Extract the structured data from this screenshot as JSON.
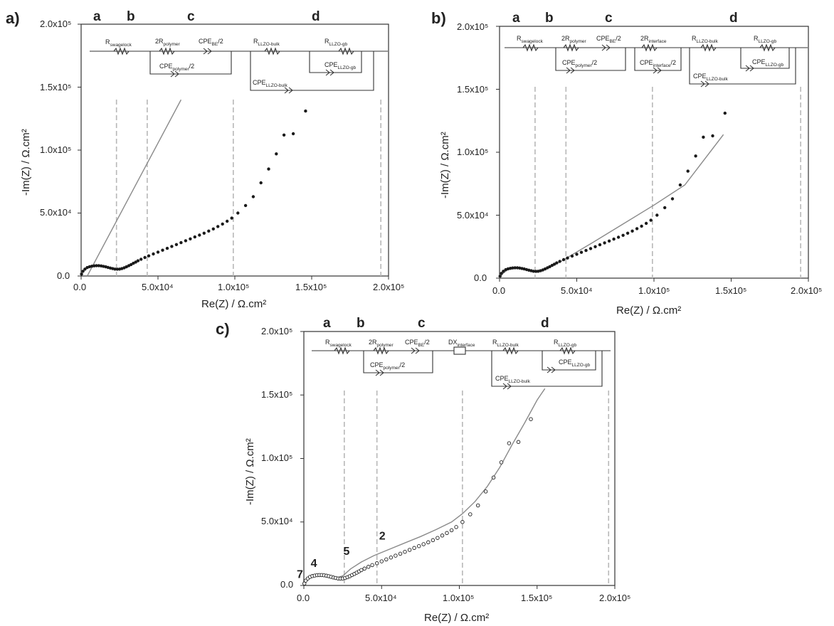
{
  "chart_data": [
    {
      "type": "scatter",
      "panel_label": "a)",
      "xlabel": "Re(Z) / Ω.cm²",
      "ylabel": "-Im(Z) / Ω.cm²",
      "xlim": [
        0,
        200000
      ],
      "ylim": [
        0,
        200000
      ],
      "x_ticks": [
        "0.0",
        "5.0x10⁴",
        "1.0x10⁵",
        "1.5x10⁵",
        "2.0x10⁵"
      ],
      "y_ticks": [
        "0.0",
        "5.0x10⁴",
        "1.0x10⁵",
        "1.5x10⁵",
        "2.0x10⁵"
      ],
      "region_labels": [
        "a",
        "b",
        "c",
        "d"
      ],
      "region_boundaries": [
        23000,
        43000,
        99000,
        195000
      ],
      "circuit_elements": [
        "R_swagelock",
        "2R_polymer",
        "CPE_BE/2",
        "CPE_polymer/2",
        "R_LLZO-bulk",
        "R_LLZO-gb",
        "CPE_LLZO-gb",
        "CPE_LLZO-bulk"
      ],
      "marker": "filled",
      "fit": {
        "type": "line",
        "x": [
          4000,
          65000
        ],
        "y": [
          0,
          140000
        ]
      },
      "points": {
        "x": [
          300,
          1200,
          2500,
          4000,
          5500,
          7000,
          8500,
          10000,
          11500,
          13000,
          14500,
          16000,
          17500,
          19000,
          20500,
          22000,
          23500,
          25000,
          26500,
          28000,
          29500,
          31000,
          32500,
          34000,
          35500,
          37000,
          39000,
          41500,
          44000,
          47000,
          50000,
          53000,
          56000,
          59000,
          62000,
          65000,
          68000,
          71000,
          74000,
          77000,
          80000,
          83000,
          86000,
          89000,
          92000,
          95000,
          98000,
          102000,
          107000,
          112000,
          117000,
          122000,
          127000,
          132000,
          138000,
          146000
        ],
        "y": [
          1500,
          3800,
          5500,
          6700,
          7400,
          7800,
          8100,
          8200,
          8200,
          8000,
          7700,
          7300,
          6800,
          6300,
          5900,
          5500,
          5400,
          5500,
          5900,
          6500,
          7300,
          8200,
          9100,
          10100,
          11100,
          12100,
          13300,
          14700,
          16000,
          17500,
          19000,
          20500,
          22000,
          23500,
          25000,
          26500,
          28000,
          29500,
          31000,
          32500,
          34000,
          35700,
          37400,
          39300,
          41300,
          43500,
          46000,
          50000,
          56000,
          63000,
          74000,
          85000,
          97000,
          112000,
          113000,
          131000
        ]
      }
    },
    {
      "type": "scatter",
      "panel_label": "b)",
      "xlabel": "Re(Z) / Ω.cm²",
      "ylabel": "-Im(Z) / Ω.cm²",
      "xlim": [
        0,
        200000
      ],
      "ylim": [
        0,
        200000
      ],
      "x_ticks": [
        "0.0",
        "5.0x10⁴",
        "1.0x10⁵",
        "1.5x10⁵",
        "2.0x10⁵"
      ],
      "y_ticks": [
        "0.0",
        "5.0x10⁴",
        "1.0x10⁵",
        "1.5x10⁵",
        "2.0x10⁵"
      ],
      "region_labels": [
        "a",
        "b",
        "c",
        "d"
      ],
      "region_boundaries": [
        23000,
        43000,
        99000,
        195000
      ],
      "circuit_elements": [
        "R_swagelock",
        "2R_polymer",
        "CPE_BE/2",
        "CPE_polymer/2",
        "2R_interface",
        "CPE_interface/2",
        "R_LLZO-bulk",
        "R_LLZO-gb",
        "CPE_LLZO-gb",
        "CPE_LLZO-bulk"
      ],
      "marker": "filled",
      "fit": {
        "type": "curve",
        "x": [
          0,
          2000,
          5000,
          9000,
          13000,
          17000,
          21000,
          24000,
          27000,
          32000,
          40000,
          60000,
          80000,
          100000,
          120000,
          145000
        ],
        "y": [
          0,
          3500,
          6500,
          7800,
          7800,
          6800,
          5200,
          4600,
          5500,
          8300,
          13500,
          28000,
          43000,
          58000,
          74000,
          114000
        ]
      },
      "points": {
        "x": [
          300,
          1200,
          2500,
          4000,
          5500,
          7000,
          8500,
          10000,
          11500,
          13000,
          14500,
          16000,
          17500,
          19000,
          20500,
          22000,
          23500,
          25000,
          26500,
          28000,
          29500,
          31000,
          32500,
          34000,
          35500,
          37000,
          39000,
          41500,
          44000,
          47000,
          50000,
          53000,
          56000,
          59000,
          62000,
          65000,
          68000,
          71000,
          74000,
          77000,
          80000,
          83000,
          86000,
          89000,
          92000,
          95000,
          98000,
          102000,
          107000,
          112000,
          117000,
          122000,
          127000,
          132000,
          138000,
          146000
        ],
        "y": [
          1500,
          3800,
          5500,
          6700,
          7400,
          7800,
          8100,
          8200,
          8200,
          8000,
          7700,
          7300,
          6800,
          6300,
          5900,
          5500,
          5400,
          5500,
          5900,
          6500,
          7300,
          8200,
          9100,
          10100,
          11100,
          12100,
          13300,
          14700,
          16000,
          17500,
          19000,
          20500,
          22000,
          23500,
          25000,
          26500,
          28000,
          29500,
          31000,
          32500,
          34000,
          35700,
          37400,
          39300,
          41300,
          43500,
          46000,
          50000,
          56000,
          63000,
          74000,
          85000,
          97000,
          112000,
          113000,
          131000
        ]
      }
    },
    {
      "type": "scatter",
      "panel_label": "c)",
      "xlabel": "Re(Z) / Ω.cm²",
      "ylabel": "-Im(Z) / Ω.cm²",
      "xlim": [
        0,
        200000
      ],
      "ylim": [
        0,
        200000
      ],
      "x_ticks": [
        "0.0",
        "5.0x10⁴",
        "1.0x10⁵",
        "1.5x10⁵",
        "2.0x10⁵"
      ],
      "y_ticks": [
        "0.0",
        "5.0x10⁴",
        "1.0x10⁵",
        "1.5x10⁵",
        "2.0x10⁵"
      ],
      "region_labels": [
        "a",
        "b",
        "c",
        "d"
      ],
      "region_boundaries": [
        26000,
        47000,
        102000,
        196000
      ],
      "circuit_elements": [
        "R_swagelock",
        "2R_polymer",
        "CPE_BE/2",
        "CPE_polymer/2",
        "DX_interface",
        "R_LLZO-bulk",
        "R_LLZO-gb",
        "CPE_LLZO-gb",
        "CPE_LLZO-bulk"
      ],
      "marker": "open",
      "annotations": [
        {
          "text": "7",
          "x": 0,
          "y": 6000
        },
        {
          "text": "4",
          "x": 9000,
          "y": 14500
        },
        {
          "text": "5",
          "x": 30000,
          "y": 24000
        },
        {
          "text": "2",
          "x": 53000,
          "y": 36000
        }
      ],
      "fit": {
        "type": "curve",
        "x": [
          0,
          2000,
          5000,
          9000,
          13000,
          17000,
          21000,
          25000,
          30000,
          37000,
          45000,
          55000,
          65000,
          75000,
          85000,
          95000,
          102000,
          110000,
          118000,
          126000,
          134000,
          142000,
          150000,
          155000
        ],
        "y": [
          0,
          4500,
          7500,
          8800,
          8400,
          6800,
          6000,
          7500,
          13000,
          18500,
          23500,
          28500,
          33500,
          38500,
          44000,
          50000,
          56500,
          66000,
          78000,
          93000,
          111000,
          128000,
          146000,
          155000
        ]
      },
      "points": {
        "x": [
          300,
          1200,
          2500,
          4000,
          5500,
          7000,
          8500,
          10000,
          11500,
          13000,
          14500,
          16000,
          17500,
          19000,
          20500,
          22000,
          23500,
          25000,
          26500,
          28000,
          29500,
          31000,
          32500,
          34000,
          35500,
          37000,
          39000,
          41500,
          44000,
          47000,
          50000,
          53000,
          56000,
          59000,
          62000,
          65000,
          68000,
          71000,
          74000,
          77000,
          80000,
          83000,
          86000,
          89000,
          92000,
          95000,
          98000,
          102000,
          107000,
          112000,
          117000,
          122000,
          127000,
          132000,
          138000,
          146000
        ],
        "y": [
          1500,
          3800,
          5500,
          6700,
          7400,
          7800,
          8100,
          8200,
          8200,
          8000,
          7700,
          7300,
          6800,
          6300,
          5900,
          5500,
          5400,
          5500,
          5900,
          6500,
          7300,
          8200,
          9100,
          10100,
          11100,
          12100,
          13300,
          14700,
          16000,
          17500,
          19000,
          20500,
          22000,
          23500,
          25000,
          26500,
          28000,
          29500,
          31000,
          32500,
          34000,
          35700,
          37400,
          39300,
          41300,
          43500,
          46000,
          50000,
          56000,
          63000,
          74000,
          85000,
          97000,
          112000,
          113000,
          131000
        ]
      }
    }
  ]
}
